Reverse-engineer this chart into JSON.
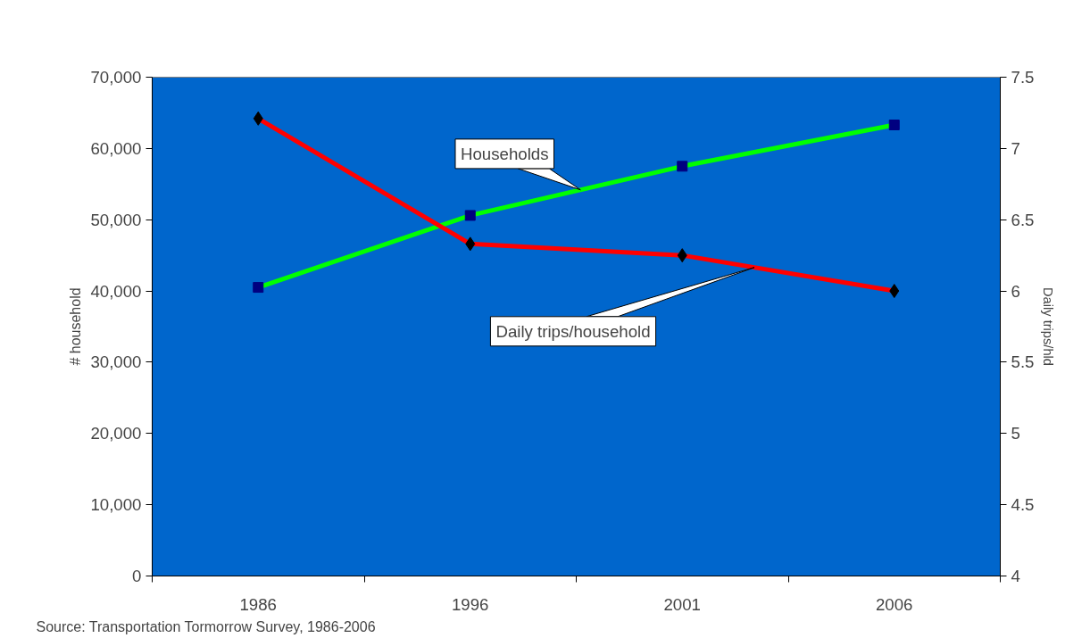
{
  "chart_data": {
    "type": "line",
    "categories": [
      "1986",
      "1996",
      "2001",
      "2006"
    ],
    "ylabel": "# household",
    "y2label": "Daily trips/hld",
    "ylim": [
      0,
      70000
    ],
    "yticks": [
      0,
      {
        "value": 10000,
        "label": "10,000"
      },
      {
        "value": 20000,
        "label": "20,000"
      },
      {
        "value": 30000,
        "label": "30,000"
      },
      {
        "value": 40000,
        "label": "40,000"
      },
      {
        "value": 50000,
        "label": "50,000"
      },
      {
        "value": 60000,
        "label": "60,000"
      },
      {
        "value": 70000,
        "label": "70,000"
      }
    ],
    "y2lim": [
      4,
      7.5
    ],
    "y2ticks": [
      4,
      4.5,
      5,
      5.5,
      6,
      6.5,
      7,
      7.5
    ],
    "series": [
      {
        "name": "Households",
        "color": "#00ff00",
        "marker": "square",
        "values": [
          40500,
          50600,
          57500,
          63300
        ]
      },
      {
        "name": "Daily trips/household",
        "color": "#ff0000",
        "marker": "diamond",
        "axis": "y2",
        "values": [
          7.21,
          6.33,
          6.25,
          6.0
        ]
      }
    ],
    "grid": false,
    "line_style": "solid",
    "annotations": [
      "Source: Transportation Tormorrow Survey, 1986-2006"
    ]
  }
}
